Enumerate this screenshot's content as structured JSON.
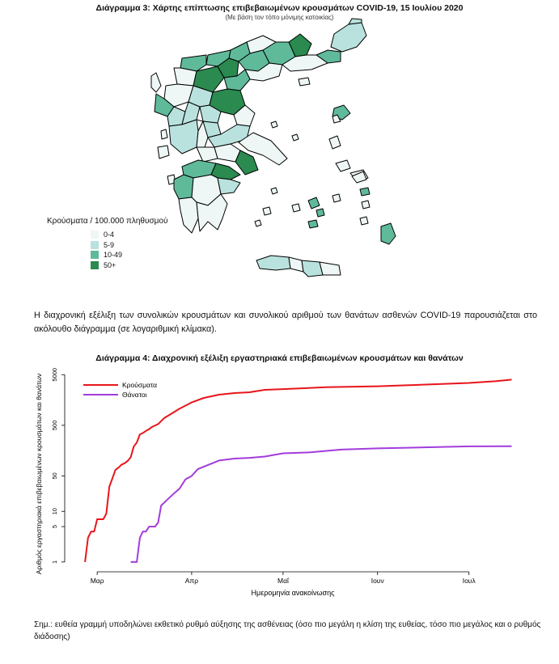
{
  "figure3": {
    "title": "Διάγραμμα 3: Χάρτης επίπτωσης επιβεβαιωμένων κρουσμάτων COVID-19, 15 Ιουλίου 2020",
    "subtitle": "(Με βάση τον τόπο μόνιμης κατοικίας)",
    "legend": {
      "title": "Κρούσματα / 100.000 πληθυσμού",
      "items": [
        {
          "label": "0-4",
          "color": "#eef7f6"
        },
        {
          "label": "5-9",
          "color": "#b9e2de"
        },
        {
          "label": "10-49",
          "color": "#5fba9a"
        },
        {
          "label": "50+",
          "color": "#2a8a4f"
        }
      ]
    }
  },
  "paragraph": "Η διαχρονική εξέλιξη των συνολικών κρουσμάτων και συνολικού αριθμού των θανάτων ασθενών COVID-19 παρουσιάζεται στο ακόλουθο διάγραμμα (σε λογαριθμική κλίμακα).",
  "figure4_title": "Διάγραμμα 4: Διαχρονική εξέλιξη εργαστηριακά επιβεβαιωμένων κρουσμάτων και θανάτων",
  "note": "Σημ.: ευθεία γραμμή υποδηλώνει εκθετικό ρυθμό αύξησης της ασθένειας (όσο πιο μεγάλη η κλίση της ευθείας, τόσο πιο μεγάλος και ο ρυθμός διάδοσης)",
  "chart_data": {
    "type": "line",
    "title": "Διάγραμμα 4: Διαχρονική εξέλιξη εργαστηριακά επιβεβαιωμένων κρουσμάτων και θανάτων",
    "xlabel": "Ημερομηνία ανακοίνωσης",
    "ylabel": "Αριθμός εργαστηριακά επιβεβαιωμένων κρουσμάτων και θανάτων",
    "y_scale": "log",
    "yticks": [
      1,
      5,
      10,
      50,
      500,
      5000
    ],
    "xticks": [
      "Μαρ",
      "Απρ",
      "Μαΐ",
      "Ιουν",
      "Ιουλ"
    ],
    "xtick_dates": [
      "2020-03-01",
      "2020-04-01",
      "2020-05-01",
      "2020-06-01",
      "2020-07-01"
    ],
    "x_range": [
      "2020-02-22",
      "2020-07-17"
    ],
    "legend_position": "top-left",
    "series": [
      {
        "name": "Κρούσματα",
        "color": "#e8151b",
        "points": [
          [
            "2020-02-26",
            1
          ],
          [
            "2020-02-27",
            3
          ],
          [
            "2020-02-28",
            4
          ],
          [
            "2020-02-29",
            4
          ],
          [
            "2020-03-01",
            7
          ],
          [
            "2020-03-03",
            7
          ],
          [
            "2020-03-04",
            9
          ],
          [
            "2020-03-05",
            31
          ],
          [
            "2020-03-06",
            45
          ],
          [
            "2020-03-07",
            66
          ],
          [
            "2020-03-08",
            73
          ],
          [
            "2020-03-09",
            84
          ],
          [
            "2020-03-10",
            89
          ],
          [
            "2020-03-11",
            99
          ],
          [
            "2020-03-12",
            117
          ],
          [
            "2020-03-13",
            190
          ],
          [
            "2020-03-14",
            228
          ],
          [
            "2020-03-15",
            331
          ],
          [
            "2020-03-16",
            352
          ],
          [
            "2020-03-17",
            387
          ],
          [
            "2020-03-18",
            418
          ],
          [
            "2020-03-19",
            464
          ],
          [
            "2020-03-20",
            495
          ],
          [
            "2020-03-21",
            530
          ],
          [
            "2020-03-23",
            695
          ],
          [
            "2020-03-25",
            821
          ],
          [
            "2020-03-28",
            1061
          ],
          [
            "2020-04-01",
            1415
          ],
          [
            "2020-04-05",
            1735
          ],
          [
            "2020-04-10",
            2011
          ],
          [
            "2020-04-15",
            2170
          ],
          [
            "2020-04-20",
            2245
          ],
          [
            "2020-04-25",
            2506
          ],
          [
            "2020-05-01",
            2591
          ],
          [
            "2020-05-15",
            2819
          ],
          [
            "2020-06-01",
            2952
          ],
          [
            "2020-06-15",
            3148
          ],
          [
            "2020-07-01",
            3432
          ],
          [
            "2020-07-10",
            3732
          ],
          [
            "2020-07-15",
            3983
          ]
        ]
      },
      {
        "name": "Θάνατοι",
        "color": "#a33cdc",
        "points": [
          [
            "2020-03-12",
            1
          ],
          [
            "2020-03-14",
            1
          ],
          [
            "2020-03-15",
            3
          ],
          [
            "2020-03-16",
            4
          ],
          [
            "2020-03-17",
            4
          ],
          [
            "2020-03-18",
            5
          ],
          [
            "2020-03-20",
            5
          ],
          [
            "2020-03-21",
            6
          ],
          [
            "2020-03-22",
            13
          ],
          [
            "2020-03-24",
            17
          ],
          [
            "2020-03-26",
            22
          ],
          [
            "2020-03-28",
            28
          ],
          [
            "2020-03-30",
            43
          ],
          [
            "2020-04-01",
            50
          ],
          [
            "2020-04-03",
            68
          ],
          [
            "2020-04-06",
            81
          ],
          [
            "2020-04-10",
            101
          ],
          [
            "2020-04-15",
            110
          ],
          [
            "2020-04-20",
            114
          ],
          [
            "2020-04-25",
            121
          ],
          [
            "2020-05-01",
            140
          ],
          [
            "2020-05-10",
            146
          ],
          [
            "2020-05-20",
            166
          ],
          [
            "2020-06-01",
            175
          ],
          [
            "2020-06-15",
            183
          ],
          [
            "2020-07-01",
            192
          ],
          [
            "2020-07-15",
            193
          ]
        ]
      }
    ]
  }
}
